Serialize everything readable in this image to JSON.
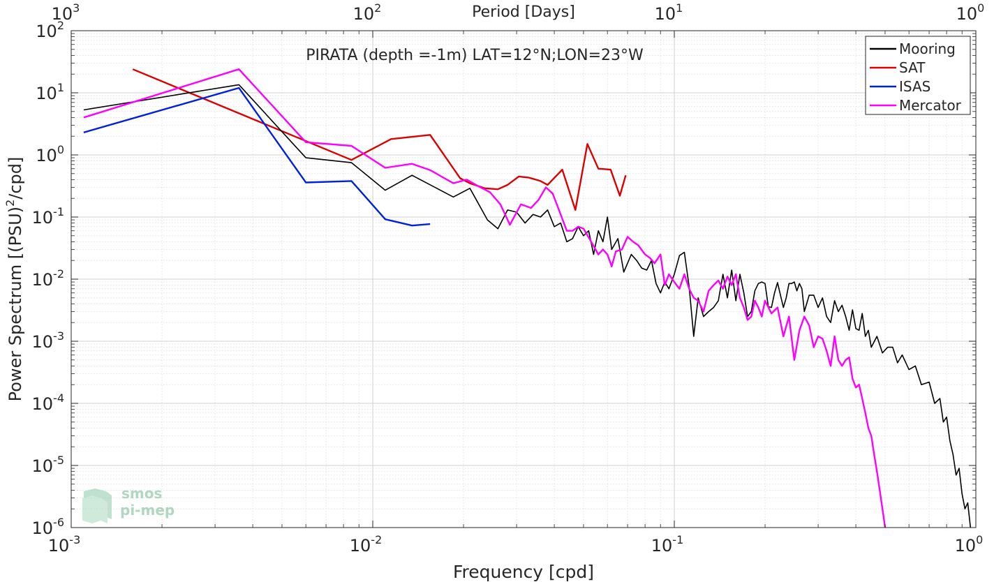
{
  "chart_data": {
    "type": "line",
    "title": "PIRATA (depth =-1m) LAT=12°N;LON=23°W",
    "xlabel": "Frequency [cpd]",
    "ylabel_main": "Power Spectrum [(PSU)",
    "ylabel_sup": "2",
    "ylabel_tail": "/cpd]",
    "top_axis_label": "Period [Days]",
    "x_scale": "log",
    "y_scale": "log",
    "xlim": [
      0.001,
      1
    ],
    "ylim": [
      1e-06,
      100
    ],
    "grid": true,
    "legend_position": "top-right",
    "x_ticks": [
      {
        "value": 0.001,
        "base": "10",
        "exp": "-3"
      },
      {
        "value": 0.01,
        "base": "10",
        "exp": "-2"
      },
      {
        "value": 0.1,
        "base": "10",
        "exp": "-1"
      },
      {
        "value": 1,
        "base": "10",
        "exp": "0"
      }
    ],
    "y_ticks": [
      {
        "value": 1e-06,
        "base": "10",
        "exp": "-6"
      },
      {
        "value": 1e-05,
        "base": "10",
        "exp": "-5"
      },
      {
        "value": 0.0001,
        "base": "10",
        "exp": "-4"
      },
      {
        "value": 0.001,
        "base": "10",
        "exp": "-3"
      },
      {
        "value": 0.01,
        "base": "10",
        "exp": "-2"
      },
      {
        "value": 0.1,
        "base": "10",
        "exp": "-1"
      },
      {
        "value": 1,
        "base": "10",
        "exp": "0"
      },
      {
        "value": 10,
        "base": "10",
        "exp": "1"
      },
      {
        "value": 100,
        "base": "10",
        "exp": "2"
      }
    ],
    "top_ticks": [
      {
        "value": 0.001,
        "base": "10",
        "exp": "3"
      },
      {
        "value": 0.01,
        "base": "10",
        "exp": "2"
      },
      {
        "value": 0.1,
        "base": "10",
        "exp": "1"
      },
      {
        "value": 1,
        "base": "10",
        "exp": "0"
      }
    ],
    "series": [
      {
        "name": "Mooring",
        "color": "#000000",
        "points": [
          [
            0.0011,
            5.3
          ],
          [
            0.0036,
            13.5
          ],
          [
            0.006,
            0.9
          ],
          [
            0.0085,
            0.75
          ],
          [
            0.011,
            0.27
          ],
          [
            0.0135,
            0.47
          ],
          [
            0.0185,
            0.21
          ],
          [
            0.021,
            0.29
          ],
          [
            0.024,
            0.09
          ],
          [
            0.026,
            0.065
          ],
          [
            0.028,
            0.13
          ],
          [
            0.03,
            0.12
          ],
          [
            0.032,
            0.08
          ],
          [
            0.034,
            0.11
          ],
          [
            0.036,
            0.1
          ],
          [
            0.038,
            0.13
          ],
          [
            0.04,
            0.07
          ],
          [
            0.042,
            0.08
          ],
          [
            0.044,
            0.04
          ],
          [
            0.046,
            0.045
          ],
          [
            0.048,
            0.07
          ],
          [
            0.05,
            0.05
          ],
          [
            0.052,
            0.06
          ],
          [
            0.054,
            0.025
          ],
          [
            0.056,
            0.06
          ],
          [
            0.058,
            0.04
          ],
          [
            0.06,
            0.1
          ],
          [
            0.062,
            0.03
          ],
          [
            0.065,
            0.045
          ],
          [
            0.068,
            0.013
          ],
          [
            0.072,
            0.025
          ],
          [
            0.075,
            0.02
          ],
          [
            0.078,
            0.015
          ],
          [
            0.081,
            0.014
          ],
          [
            0.084,
            0.02
          ],
          [
            0.087,
            0.0085
          ],
          [
            0.09,
            0.006
          ],
          [
            0.093,
            0.009
          ],
          [
            0.096,
            0.007
          ],
          [
            0.1,
            0.012
          ],
          [
            0.104,
            0.024
          ],
          [
            0.108,
            0.027
          ],
          [
            0.112,
            0.0075
          ],
          [
            0.116,
            0.0012
          ],
          [
            0.12,
            0.005
          ],
          [
            0.125,
            0.0025
          ],
          [
            0.13,
            0.003
          ],
          [
            0.135,
            0.0035
          ],
          [
            0.14,
            0.0045
          ],
          [
            0.145,
            0.012
          ],
          [
            0.15,
            0.005
          ],
          [
            0.155,
            0.014
          ],
          [
            0.16,
            0.0045
          ],
          [
            0.165,
            0.012
          ],
          [
            0.17,
            0.006
          ],
          [
            0.175,
            0.0025
          ],
          [
            0.18,
            0.003
          ],
          [
            0.185,
            0.0065
          ],
          [
            0.19,
            0.0085
          ],
          [
            0.195,
            0.009
          ],
          [
            0.2,
            0.0085
          ],
          [
            0.205,
            0.0036
          ],
          [
            0.21,
            0.0035
          ],
          [
            0.215,
            0.006
          ],
          [
            0.22,
            0.0088
          ],
          [
            0.225,
            0.0055
          ],
          [
            0.23,
            0.0035
          ],
          [
            0.235,
            0.005
          ],
          [
            0.24,
            0.0085
          ],
          [
            0.245,
            0.0085
          ],
          [
            0.25,
            0.009
          ],
          [
            0.255,
            0.0065
          ],
          [
            0.26,
            0.0085
          ],
          [
            0.265,
            0.007
          ],
          [
            0.27,
            0.003
          ],
          [
            0.28,
            0.0055
          ],
          [
            0.29,
            0.0055
          ],
          [
            0.3,
            0.0035
          ],
          [
            0.31,
            0.005
          ],
          [
            0.32,
            0.0025
          ],
          [
            0.33,
            0.002
          ],
          [
            0.34,
            0.0045
          ],
          [
            0.35,
            0.003
          ],
          [
            0.36,
            0.0038
          ],
          [
            0.37,
            0.0025
          ],
          [
            0.38,
            0.0015
          ],
          [
            0.39,
            0.0032
          ],
          [
            0.4,
            0.0016
          ],
          [
            0.41,
            0.0015
          ],
          [
            0.42,
            0.0028
          ],
          [
            0.43,
            0.0012
          ],
          [
            0.44,
            0.0015
          ],
          [
            0.45,
            0.0008
          ],
          [
            0.47,
            0.0012
          ],
          [
            0.49,
            0.00065
          ],
          [
            0.51,
            0.0008
          ],
          [
            0.53,
            0.0008
          ],
          [
            0.55,
            0.00045
          ],
          [
            0.57,
            0.0006
          ],
          [
            0.6,
            0.00035
          ],
          [
            0.63,
            0.0004
          ],
          [
            0.66,
            0.0002
          ],
          [
            0.7,
            0.00022
          ],
          [
            0.73,
            0.0001
          ],
          [
            0.76,
            0.00012
          ],
          [
            0.78,
            5e-05
          ],
          [
            0.8,
            6e-05
          ],
          [
            0.82,
            2.5e-05
          ],
          [
            0.84,
            1.5e-05
          ],
          [
            0.86,
            7e-06
          ],
          [
            0.88,
            9e-06
          ],
          [
            0.9,
            3.5e-06
          ],
          [
            0.92,
            2e-06
          ],
          [
            0.94,
            2.5e-06
          ],
          [
            0.96,
            1e-06
          ]
        ]
      },
      {
        "name": "SAT",
        "color": "#dd0000",
        "points": [
          [
            0.0016,
            24.0
          ],
          [
            0.0085,
            0.83
          ],
          [
            0.0115,
            1.8
          ],
          [
            0.0155,
            2.1
          ],
          [
            0.0195,
            0.42
          ],
          [
            0.021,
            0.35
          ],
          [
            0.0235,
            0.29
          ],
          [
            0.026,
            0.28
          ],
          [
            0.028,
            0.33
          ],
          [
            0.0305,
            0.45
          ],
          [
            0.033,
            0.43
          ],
          [
            0.036,
            0.38
          ],
          [
            0.038,
            0.33
          ],
          [
            0.0425,
            0.58
          ],
          [
            0.047,
            0.13
          ],
          [
            0.0515,
            1.5
          ],
          [
            0.056,
            0.6
          ],
          [
            0.0615,
            0.58
          ],
          [
            0.066,
            0.22
          ],
          [
            0.069,
            0.47
          ]
        ]
      },
      {
        "name": "ISAS",
        "color": "#0020e0",
        "points": [
          [
            0.0011,
            2.3
          ],
          [
            0.0036,
            12.0
          ],
          [
            0.006,
            0.36
          ],
          [
            0.0085,
            0.38
          ],
          [
            0.011,
            0.092
          ],
          [
            0.0135,
            0.073
          ],
          [
            0.0155,
            0.077
          ]
        ]
      },
      {
        "name": "Mercator",
        "color": "#ff00ff",
        "points": [
          [
            0.0011,
            4.0
          ],
          [
            0.0036,
            24.0
          ],
          [
            0.006,
            1.6
          ],
          [
            0.0085,
            1.4
          ],
          [
            0.011,
            0.62
          ],
          [
            0.0135,
            0.72
          ],
          [
            0.0155,
            0.57
          ],
          [
            0.0185,
            0.35
          ],
          [
            0.0205,
            0.4
          ],
          [
            0.0225,
            0.31
          ],
          [
            0.0245,
            0.25
          ],
          [
            0.0265,
            0.16
          ],
          [
            0.0285,
            0.075
          ],
          [
            0.031,
            0.16
          ],
          [
            0.0335,
            0.14
          ],
          [
            0.0355,
            0.19
          ],
          [
            0.0375,
            0.3
          ],
          [
            0.0395,
            0.24
          ],
          [
            0.042,
            0.11
          ],
          [
            0.044,
            0.06
          ],
          [
            0.046,
            0.06
          ],
          [
            0.048,
            0.07
          ],
          [
            0.05,
            0.065
          ],
          [
            0.053,
            0.04
          ],
          [
            0.056,
            0.025
          ],
          [
            0.058,
            0.03
          ],
          [
            0.06,
            0.025
          ],
          [
            0.062,
            0.016
          ],
          [
            0.064,
            0.028
          ],
          [
            0.067,
            0.03
          ],
          [
            0.07,
            0.048
          ],
          [
            0.073,
            0.04
          ],
          [
            0.076,
            0.035
          ],
          [
            0.08,
            0.025
          ],
          [
            0.083,
            0.022
          ],
          [
            0.086,
            0.018
          ],
          [
            0.09,
            0.025
          ],
          [
            0.093,
            0.008
          ],
          [
            0.096,
            0.012
          ],
          [
            0.1,
            0.009
          ],
          [
            0.104,
            0.007
          ],
          [
            0.108,
            0.012
          ],
          [
            0.112,
            0.007
          ],
          [
            0.116,
            0.005
          ],
          [
            0.12,
            0.0045
          ],
          [
            0.125,
            0.003
          ],
          [
            0.13,
            0.0065
          ],
          [
            0.135,
            0.008
          ],
          [
            0.14,
            0.0095
          ],
          [
            0.145,
            0.007
          ],
          [
            0.15,
            0.011
          ],
          [
            0.155,
            0.008
          ],
          [
            0.16,
            0.012
          ],
          [
            0.165,
            0.005
          ],
          [
            0.17,
            0.0035
          ],
          [
            0.175,
            0.0022
          ],
          [
            0.18,
            0.0025
          ],
          [
            0.185,
            0.0045
          ],
          [
            0.19,
            0.0035
          ],
          [
            0.195,
            0.0025
          ],
          [
            0.2,
            0.0045
          ],
          [
            0.21,
            0.0028
          ],
          [
            0.22,
            0.0035
          ],
          [
            0.23,
            0.0012
          ],
          [
            0.24,
            0.0025
          ],
          [
            0.25,
            0.0005
          ],
          [
            0.26,
            0.0015
          ],
          [
            0.27,
            0.0025
          ],
          [
            0.28,
            0.0018
          ],
          [
            0.29,
            0.0008
          ],
          [
            0.3,
            0.0012
          ],
          [
            0.31,
            0.0011
          ],
          [
            0.32,
            0.0007
          ],
          [
            0.33,
            0.0004
          ],
          [
            0.34,
            0.0012
          ],
          [
            0.35,
            0.0005
          ],
          [
            0.36,
            0.0004
          ],
          [
            0.37,
            0.0005
          ],
          [
            0.38,
            0.00055
          ],
          [
            0.39,
            0.00025
          ],
          [
            0.4,
            0.00018
          ],
          [
            0.41,
            0.0002
          ],
          [
            0.42,
            0.00012
          ],
          [
            0.43,
            7e-05
          ],
          [
            0.44,
            4e-05
          ],
          [
            0.45,
            3e-05
          ],
          [
            0.46,
            1.5e-05
          ],
          [
            0.47,
            8e-06
          ],
          [
            0.48,
            4e-06
          ],
          [
            0.49,
            2e-06
          ],
          [
            0.5,
            1e-06
          ]
        ]
      }
    ],
    "watermark": {
      "line1": "smos",
      "line2": "pi-mep"
    }
  }
}
